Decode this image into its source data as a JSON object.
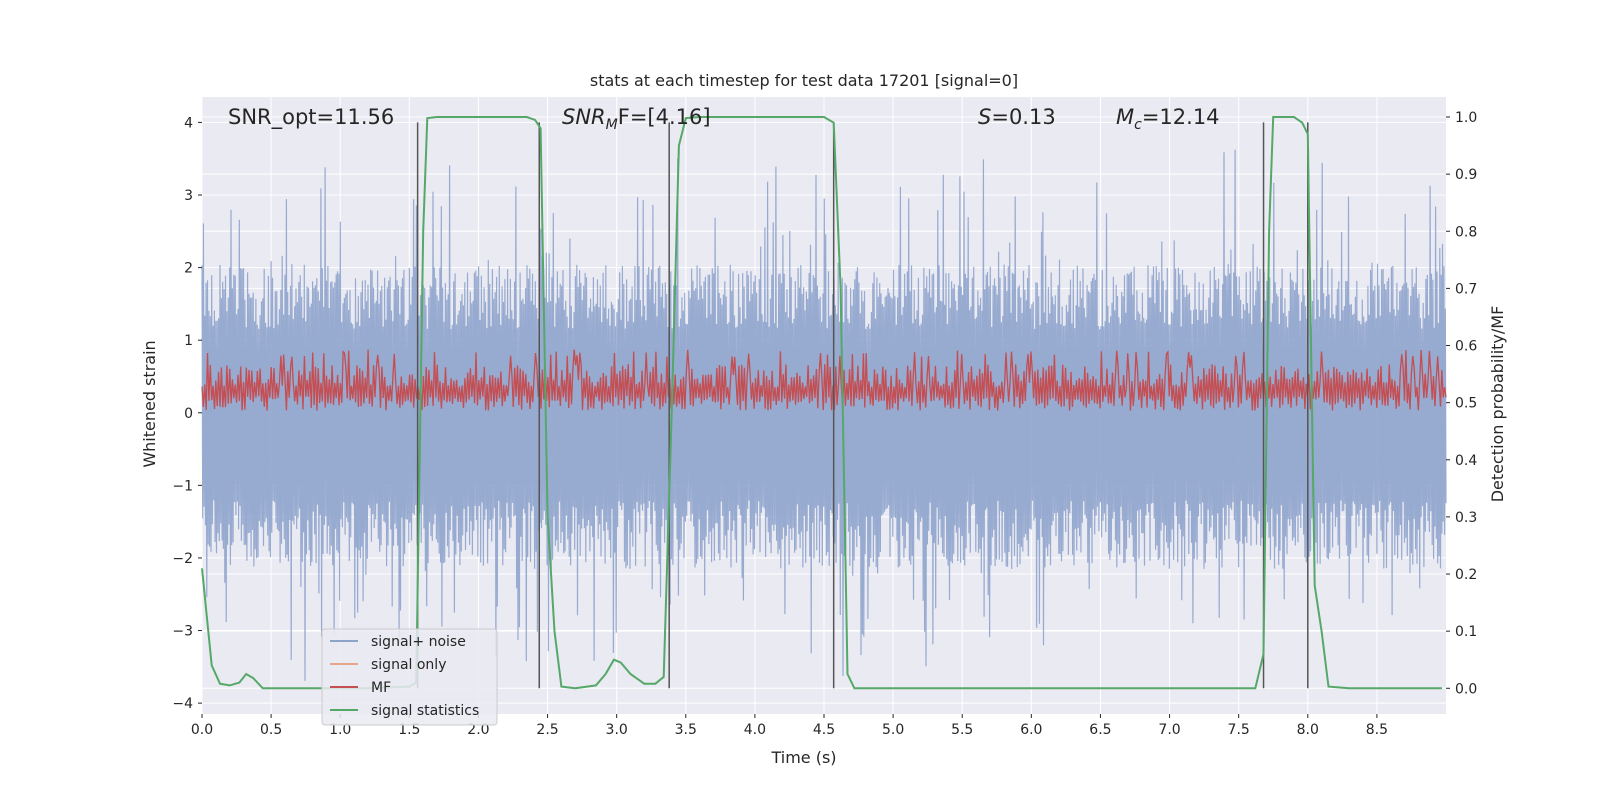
{
  "chart_data": {
    "type": "line",
    "title": "stats at each timestep for test data 17201 [signal=0]",
    "xlabel": "Time (s)",
    "ylabel": "Whitened strain",
    "y2label": "Detection probability/MF",
    "xlim": [
      0,
      9
    ],
    "ylim": [
      -4.15,
      4.35
    ],
    "y2lim": [
      -0.045,
      1.035
    ],
    "xticks": [
      "0.0",
      "0.5",
      "1.0",
      "1.5",
      "2.0",
      "2.5",
      "3.0",
      "3.5",
      "4.0",
      "4.5",
      "5.0",
      "5.5",
      "6.0",
      "6.5",
      "7.0",
      "7.5",
      "8.0",
      "8.5"
    ],
    "yticks": [
      "−4",
      "−3",
      "−2",
      "−1",
      "0",
      "1",
      "2",
      "3",
      "4"
    ],
    "y2ticks": [
      "0.0",
      "0.1",
      "0.2",
      "0.3",
      "0.4",
      "0.5",
      "0.6",
      "0.7",
      "0.8",
      "0.9",
      "1.0"
    ],
    "grid": true,
    "legend_position": "lower-left",
    "annotations": {
      "snr_opt": "SNR_opt=11.56",
      "snr_mf_base": "SNR",
      "snr_mf_sub": "M",
      "snr_mf_rest": "F=[4.16]",
      "s_stat": "S",
      "s_rest": "=0.13",
      "mc_base": "M",
      "mc_sub": "c",
      "mc_rest": "=12.14"
    },
    "vlines_x": [
      1.56,
      2.44,
      3.38,
      4.57,
      7.68,
      8.0
    ],
    "vline_ymax": 4.0,
    "series": [
      {
        "name": "signal+ noise",
        "color": "#8ea3cc",
        "axis": "left",
        "style": "noise",
        "amplitude_range": [
          -3.9,
          3.65
        ]
      },
      {
        "name": "signal only",
        "color": "#e8a58a",
        "axis": "left",
        "values": []
      },
      {
        "name": "MF",
        "color": "#c44e52",
        "axis": "left",
        "style": "noise",
        "range": [
          0.0,
          0.87
        ]
      },
      {
        "name": "signal statistics",
        "color": "#55a868",
        "axis": "right",
        "points": [
          [
            0.0,
            0.21
          ],
          [
            0.07,
            0.04
          ],
          [
            0.13,
            0.008
          ],
          [
            0.2,
            0.005
          ],
          [
            0.27,
            0.01
          ],
          [
            0.32,
            0.025
          ],
          [
            0.37,
            0.018
          ],
          [
            0.44,
            0.0
          ],
          [
            0.6,
            0.0
          ],
          [
            1.2,
            0.0
          ],
          [
            1.5,
            0.003
          ],
          [
            1.55,
            0.01
          ],
          [
            1.6,
            0.8
          ],
          [
            1.63,
            0.998
          ],
          [
            1.7,
            1.0
          ],
          [
            2.0,
            1.0
          ],
          [
            2.35,
            1.0
          ],
          [
            2.41,
            0.995
          ],
          [
            2.45,
            0.98
          ],
          [
            2.5,
            0.3
          ],
          [
            2.55,
            0.1
          ],
          [
            2.6,
            0.003
          ],
          [
            2.7,
            0.0
          ],
          [
            2.85,
            0.005
          ],
          [
            2.92,
            0.025
          ],
          [
            2.98,
            0.05
          ],
          [
            3.03,
            0.045
          ],
          [
            3.1,
            0.025
          ],
          [
            3.2,
            0.008
          ],
          [
            3.28,
            0.008
          ],
          [
            3.34,
            0.02
          ],
          [
            3.4,
            0.5
          ],
          [
            3.45,
            0.95
          ],
          [
            3.5,
            0.998
          ],
          [
            3.6,
            1.0
          ],
          [
            4.0,
            1.0
          ],
          [
            4.5,
            1.0
          ],
          [
            4.57,
            0.99
          ],
          [
            4.62,
            0.7
          ],
          [
            4.67,
            0.025
          ],
          [
            4.72,
            0.0
          ],
          [
            5.0,
            0.0
          ],
          [
            6.0,
            0.0
          ],
          [
            7.0,
            0.0
          ],
          [
            7.62,
            0.0
          ],
          [
            7.68,
            0.06
          ],
          [
            7.72,
            0.8
          ],
          [
            7.75,
            1.0
          ],
          [
            7.9,
            1.0
          ],
          [
            7.96,
            0.99
          ],
          [
            8.0,
            0.97
          ],
          [
            8.05,
            0.18
          ],
          [
            8.1,
            0.1
          ],
          [
            8.15,
            0.003
          ],
          [
            8.3,
            0.0
          ],
          [
            8.97,
            0.0
          ]
        ]
      }
    ]
  }
}
